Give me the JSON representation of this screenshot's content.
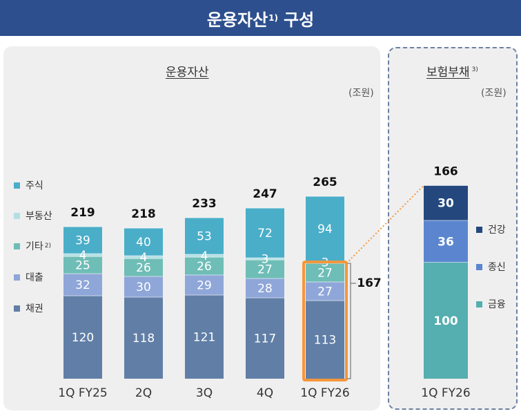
{
  "header": {
    "title": "운용자산",
    "title_sup": "1)",
    "title_suffix": "구성"
  },
  "left": {
    "title": "운용자산",
    "unit": "(조원)"
  },
  "right": {
    "title": "보험부채",
    "title_sup": "3)",
    "unit": "(조원)"
  },
  "legend_left": [
    {
      "label": "주식",
      "sup": "",
      "color": "#4aaec8"
    },
    {
      "label": "부동산",
      "sup": "",
      "color": "#b3dfe3"
    },
    {
      "label": "기타",
      "sup": "2)",
      "color": "#6fbdb7"
    },
    {
      "label": "대출",
      "sup": "",
      "color": "#8fa6d8"
    },
    {
      "label": "채권",
      "sup": "",
      "color": "#617fa6"
    }
  ],
  "legend_right": [
    {
      "label": "건강",
      "color": "#24487e"
    },
    {
      "label": "종신",
      "color": "#5b86cf"
    },
    {
      "label": "금융",
      "color": "#55aeaf"
    }
  ],
  "colors": {
    "highlight": "#f5963b",
    "bracket": "#777777"
  },
  "bracket_label": "167",
  "chart_data": [
    {
      "type": "bar",
      "stacked": true,
      "title": "운용자산",
      "unit": "(조원)",
      "categories": [
        "1Q FY25",
        "2Q",
        "3Q",
        "4Q",
        "1Q FY26"
      ],
      "series": [
        {
          "name": "채권",
          "values": [
            120,
            118,
            121,
            117,
            113
          ],
          "color": "#617fa6"
        },
        {
          "name": "대출",
          "values": [
            32,
            30,
            29,
            28,
            27
          ],
          "color": "#8fa6d8"
        },
        {
          "name": "기타",
          "values": [
            25,
            26,
            26,
            27,
            27
          ],
          "color": "#6fbdb7"
        },
        {
          "name": "부동산",
          "values": [
            4,
            4,
            4,
            3,
            3
          ],
          "color": "#b3dfe3"
        },
        {
          "name": "주식",
          "values": [
            39,
            40,
            53,
            72,
            94
          ],
          "color": "#4aaec8"
        }
      ],
      "totals": [
        219,
        218,
        233,
        247,
        265
      ],
      "highlight": {
        "category": "1Q FY26",
        "sum": 167
      }
    },
    {
      "type": "bar",
      "stacked": true,
      "title": "보험부채",
      "unit": "(조원)",
      "categories": [
        "1Q FY26"
      ],
      "series": [
        {
          "name": "금융",
          "values": [
            100
          ],
          "color": "#55aeaf"
        },
        {
          "name": "종신",
          "values": [
            36
          ],
          "color": "#5b86cf"
        },
        {
          "name": "건강",
          "values": [
            30
          ],
          "color": "#24487e"
        }
      ],
      "totals": [
        166
      ]
    }
  ]
}
